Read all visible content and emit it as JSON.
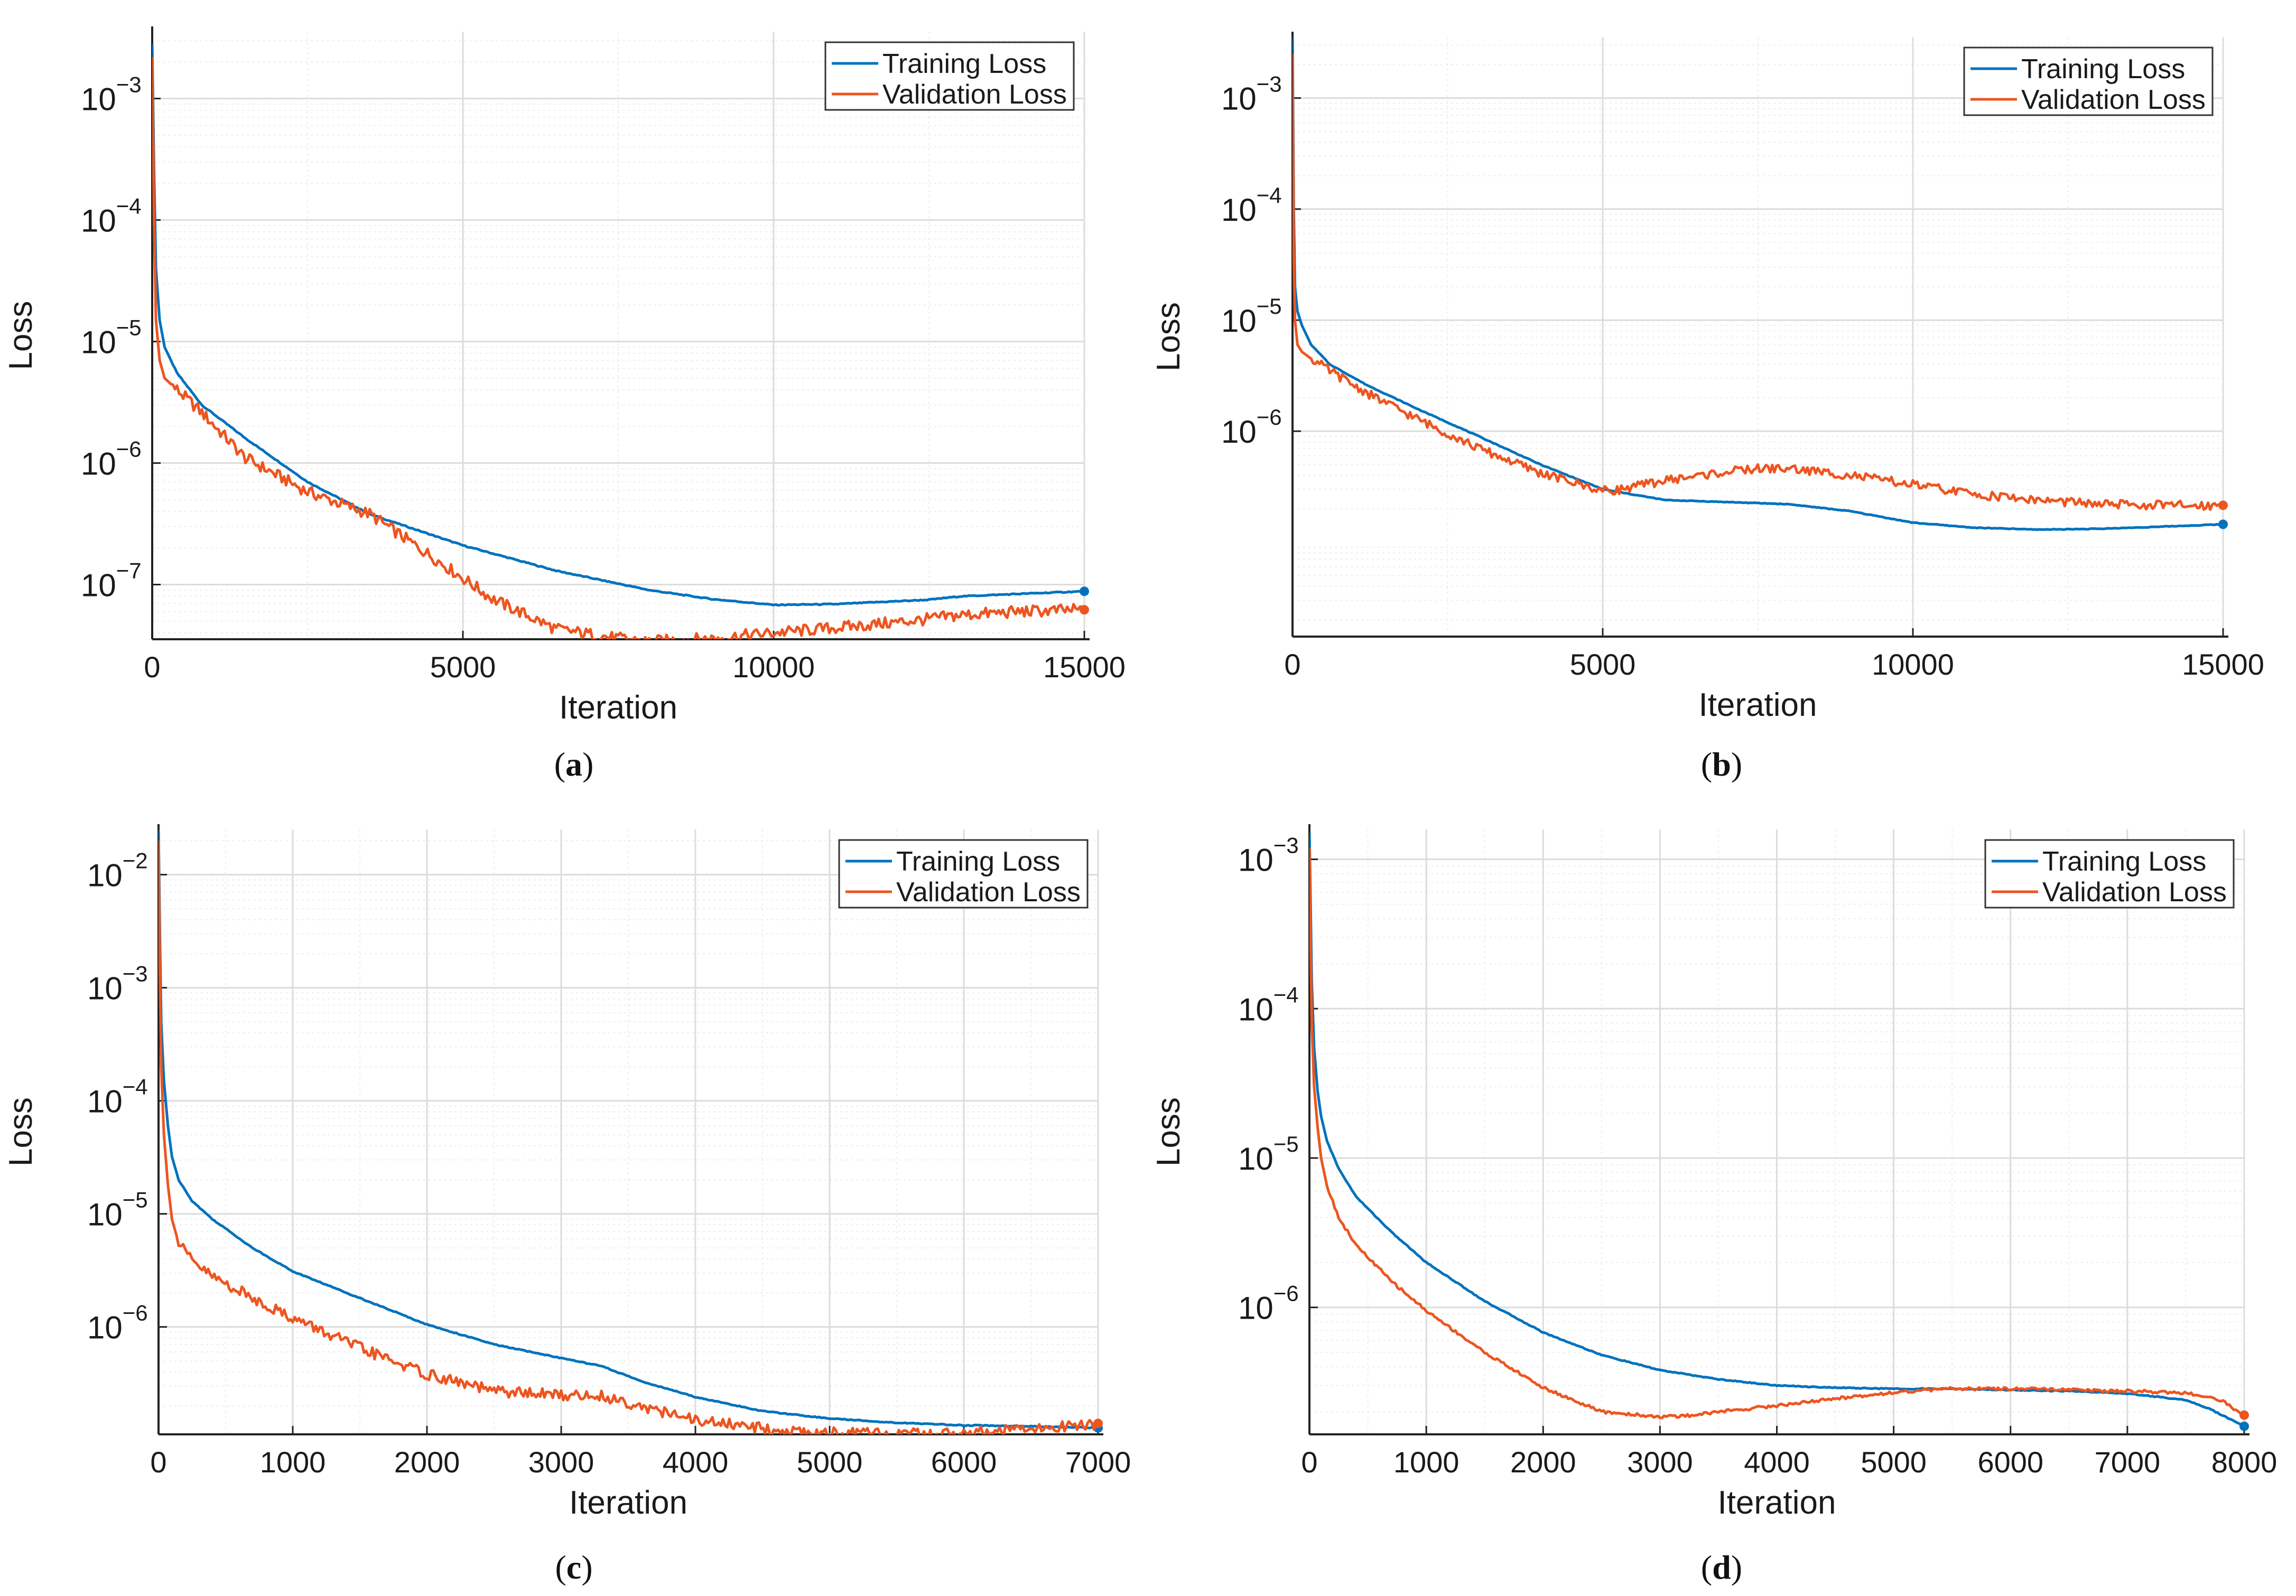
{
  "figure": {
    "panels": [
      {
        "caption_letter": "a"
      },
      {
        "caption_letter": "b"
      },
      {
        "caption_letter": "c"
      },
      {
        "caption_letter": "d"
      }
    ]
  },
  "colors": {
    "training": "#0072BD",
    "validation": "#ED5520",
    "grid_major": "#dcdcdc",
    "grid_minor": "#eeeeee",
    "axis": "#222222"
  },
  "chart_data": [
    {
      "type": "line",
      "panel": "a",
      "xlabel": "Iteration",
      "ylabel": "Loss",
      "xlim": [
        0,
        15000
      ],
      "ylim_log10": [
        -7.45,
        -2.45
      ],
      "xticks": [
        0,
        5000,
        10000,
        15000
      ],
      "xtick_labels": [
        "0",
        "5000",
        "10000",
        "15000"
      ],
      "yticks_exp": [
        -7,
        -6,
        -5,
        -4,
        -3
      ],
      "ytick_labels": [
        "10",
        "10",
        "10",
        "10",
        "10"
      ],
      "ytick_exponents": [
        "−7",
        "−6",
        "−5",
        "−4",
        "−3"
      ],
      "legend_location": "top-right",
      "series": [
        {
          "name": "Training Loss",
          "noise": 0.004,
          "x": [
            0,
            30,
            60,
            120,
            200,
            400,
            800,
            1500,
            2500,
            3500,
            5000,
            6500,
            8000,
            9000,
            10000,
            11000,
            12000,
            12500,
            13000,
            14000,
            15000
          ],
          "y": [
            0.0028,
            0.00025,
            4e-05,
            1.5e-05,
            9e-06,
            5.5e-06,
            3e-06,
            1.6e-06,
            7e-07,
            3.8e-07,
            2.1e-07,
            1.3e-07,
            9e-08,
            7.6e-08,
            6.8e-08,
            6.9e-08,
            7.3e-08,
            7.5e-08,
            8e-08,
            8.4e-08,
            8.8e-08
          ]
        },
        {
          "name": "Validation Loss",
          "noise": 0.05,
          "x": [
            0,
            30,
            60,
            120,
            200,
            400,
            800,
            1500,
            2500,
            3500,
            4500,
            5500,
            6500,
            7500,
            8000,
            9000,
            10000,
            11000,
            12000,
            12500,
            13000,
            14000,
            15000
          ],
          "y": [
            0.0022,
            0.0001,
            1.5e-05,
            7e-06,
            5e-06,
            4e-06,
            2.6e-06,
            1.1e-06,
            5.8e-07,
            3.8e-07,
            1.7e-07,
            7.5e-08,
            4.3e-08,
            3.6e-08,
            3.4e-08,
            3.6e-08,
            4e-08,
            4.4e-08,
            4.9e-08,
            5.2e-08,
            5.6e-08,
            6e-08,
            6.2e-08
          ]
        }
      ]
    },
    {
      "type": "line",
      "panel": "b",
      "xlabel": "Iteration",
      "ylabel": "Loss",
      "xlim": [
        0,
        15000
      ],
      "ylim_log10": [
        -7.85,
        -2.45
      ],
      "xticks": [
        0,
        5000,
        10000,
        15000
      ],
      "xtick_labels": [
        "0",
        "5000",
        "10000",
        "15000"
      ],
      "yticks_exp": [
        -6,
        -5,
        -4,
        -3
      ],
      "ytick_labels": [
        "10",
        "10",
        "10",
        "10"
      ],
      "ytick_exponents": [
        "−6",
        "−5",
        "−4",
        "−3"
      ],
      "legend_location": "top-right",
      "series": [
        {
          "name": "Training Loss",
          "noise": 0.003,
          "x": [
            0,
            20,
            40,
            80,
            150,
            300,
            600,
            1200,
            2000,
            3000,
            4000,
            5000,
            6000,
            7000,
            8000,
            9000,
            10000,
            11000,
            12000,
            13000,
            14000,
            15000
          ],
          "y": [
            0.0035,
            0.0001,
            2e-05,
            1.2e-05,
            9e-06,
            6e-06,
            4e-06,
            2.6e-06,
            1.6e-06,
            9e-07,
            5e-07,
            3e-07,
            2.4e-07,
            2.3e-07,
            2.2e-07,
            1.9e-07,
            1.5e-07,
            1.35e-07,
            1.3e-07,
            1.32e-07,
            1.38e-07,
            1.45e-07
          ]
        },
        {
          "name": "Validation Loss",
          "noise": 0.04,
          "x": [
            0,
            20,
            40,
            80,
            150,
            300,
            600,
            1200,
            2000,
            3000,
            4000,
            5000,
            5300,
            6000,
            7000,
            7500,
            8000,
            8500,
            9000,
            10000,
            11000,
            12000,
            13000,
            14000,
            15000
          ],
          "y": [
            0.0025,
            4e-05,
            1e-05,
            6e-06,
            5.2e-06,
            4.5e-06,
            3.5e-06,
            2.2e-06,
            1.3e-06,
            7e-07,
            4.2e-07,
            2.9e-07,
            3e-07,
            3.6e-07,
            4.3e-07,
            4.6e-07,
            4.6e-07,
            4.3e-07,
            4e-07,
            3.3e-07,
            2.7e-07,
            2.4e-07,
            2.2e-07,
            2.15e-07,
            2.15e-07
          ]
        }
      ]
    },
    {
      "type": "line",
      "panel": "c",
      "xlabel": "Iteration",
      "ylabel": "Loss",
      "xlim": [
        0,
        7000
      ],
      "ylim_log10": [
        -6.95,
        -1.6
      ],
      "xticks": [
        0,
        1000,
        2000,
        3000,
        4000,
        5000,
        6000,
        7000
      ],
      "xtick_labels": [
        "0",
        "1000",
        "2000",
        "3000",
        "4000",
        "5000",
        "6000",
        "7000"
      ],
      "yticks_exp": [
        -6,
        -5,
        -4,
        -3,
        -2
      ],
      "ytick_labels": [
        "10",
        "10",
        "10",
        "10",
        "10"
      ],
      "ytick_exponents": [
        "−6",
        "−5",
        "−4",
        "−3",
        "−2"
      ],
      "legend_location": "top-right",
      "series": [
        {
          "name": "Training Loss",
          "noise": 0.004,
          "x": [
            0,
            10,
            20,
            40,
            70,
            100,
            150,
            250,
            400,
            700,
            1000,
            1500,
            2000,
            2500,
            3000,
            3300,
            3600,
            4000,
            4500,
            5000,
            5500,
            6000,
            6500,
            7000
          ],
          "y": [
            0.025,
            0.003,
            0.0005,
            0.00015,
            6e-05,
            3.2e-05,
            2e-05,
            1.3e-05,
            9e-06,
            5e-06,
            3.1e-06,
            1.8e-06,
            1.05e-06,
            7e-07,
            5.3e-07,
            4.5e-07,
            3.3e-07,
            2.4e-07,
            1.8e-07,
            1.55e-07,
            1.42e-07,
            1.35e-07,
            1.32e-07,
            1.28e-07
          ]
        },
        {
          "name": "Validation Loss",
          "noise": 0.05,
          "x": [
            0,
            10,
            20,
            40,
            70,
            100,
            150,
            250,
            400,
            700,
            1000,
            1500,
            2000,
            2500,
            3000,
            3300,
            3600,
            3800,
            4000,
            4300,
            4600,
            5000,
            5500,
            6000,
            6500,
            7000
          ],
          "y": [
            0.02,
            0.0015,
            0.0002,
            5e-05,
            1.8e-05,
            9e-06,
            5.5e-06,
            3.8e-06,
            2.8e-06,
            1.8e-06,
            1.2e-06,
            6.5e-07,
            3.8e-07,
            2.7e-07,
            2.5e-07,
            2.45e-07,
            2e-07,
            1.7e-07,
            1.5e-07,
            1.35e-07,
            1.22e-07,
            1.15e-07,
            1.12e-07,
            1.15e-07,
            1.25e-07,
            1.4e-07
          ]
        }
      ]
    },
    {
      "type": "line",
      "panel": "d",
      "xlabel": "Iteration",
      "ylabel": "Loss",
      "xlim": [
        0,
        8000
      ],
      "ylim_log10": [
        -6.85,
        -2.8
      ],
      "xticks": [
        0,
        1000,
        2000,
        3000,
        4000,
        5000,
        6000,
        7000,
        8000
      ],
      "xtick_labels": [
        "0",
        "1000",
        "2000",
        "3000",
        "4000",
        "5000",
        "6000",
        "7000",
        "8000"
      ],
      "yticks_exp": [
        -6,
        -5,
        -4,
        -3
      ],
      "ytick_labels": [
        "10",
        "10",
        "10",
        "10"
      ],
      "ytick_exponents": [
        "−6",
        "−5",
        "−4",
        "−3"
      ],
      "legend_location": "top-right",
      "series": [
        {
          "name": "Training Loss",
          "noise": 0.003,
          "x": [
            0,
            10,
            20,
            40,
            70,
            100,
            150,
            250,
            400,
            700,
            1000,
            1500,
            2000,
            2500,
            3000,
            3500,
            4000,
            4500,
            5000,
            5500,
            6000,
            6500,
            7000,
            7500,
            7700,
            8000
          ],
          "y": [
            0.0015,
            0.0005,
            0.00015,
            5.5e-05,
            2.8e-05,
            1.9e-05,
            1.3e-05,
            8.5e-06,
            5.5e-06,
            3.2e-06,
            2e-06,
            1.1e-06,
            6.8e-07,
            4.8e-07,
            3.8e-07,
            3.3e-07,
            3e-07,
            2.9e-07,
            2.85e-07,
            2.85e-07,
            2.8e-07,
            2.75e-07,
            2.65e-07,
            2.4e-07,
            2.1e-07,
            1.6e-07
          ]
        },
        {
          "name": "Validation Loss",
          "noise": 0.01,
          "x": [
            0,
            10,
            20,
            40,
            70,
            100,
            150,
            250,
            400,
            700,
            1000,
            1500,
            2000,
            2500,
            3000,
            3200,
            3500,
            4000,
            4500,
            5000,
            5500,
            6000,
            6500,
            7000,
            7400,
            7600,
            7800,
            8000
          ],
          "y": [
            0.0012,
            0.0003,
            8e-05,
            3e-05,
            1.6e-05,
            1e-05,
            6.5e-06,
            4e-06,
            2.6e-06,
            1.5e-06,
            9.5e-07,
            5e-07,
            2.9e-07,
            2e-07,
            1.85e-07,
            1.87e-07,
            2e-07,
            2.2e-07,
            2.45e-07,
            2.7e-07,
            2.85e-07,
            2.85e-07,
            2.8e-07,
            2.75e-07,
            2.7e-07,
            2.6e-07,
            2.4e-07,
            1.9e-07
          ]
        }
      ]
    }
  ]
}
